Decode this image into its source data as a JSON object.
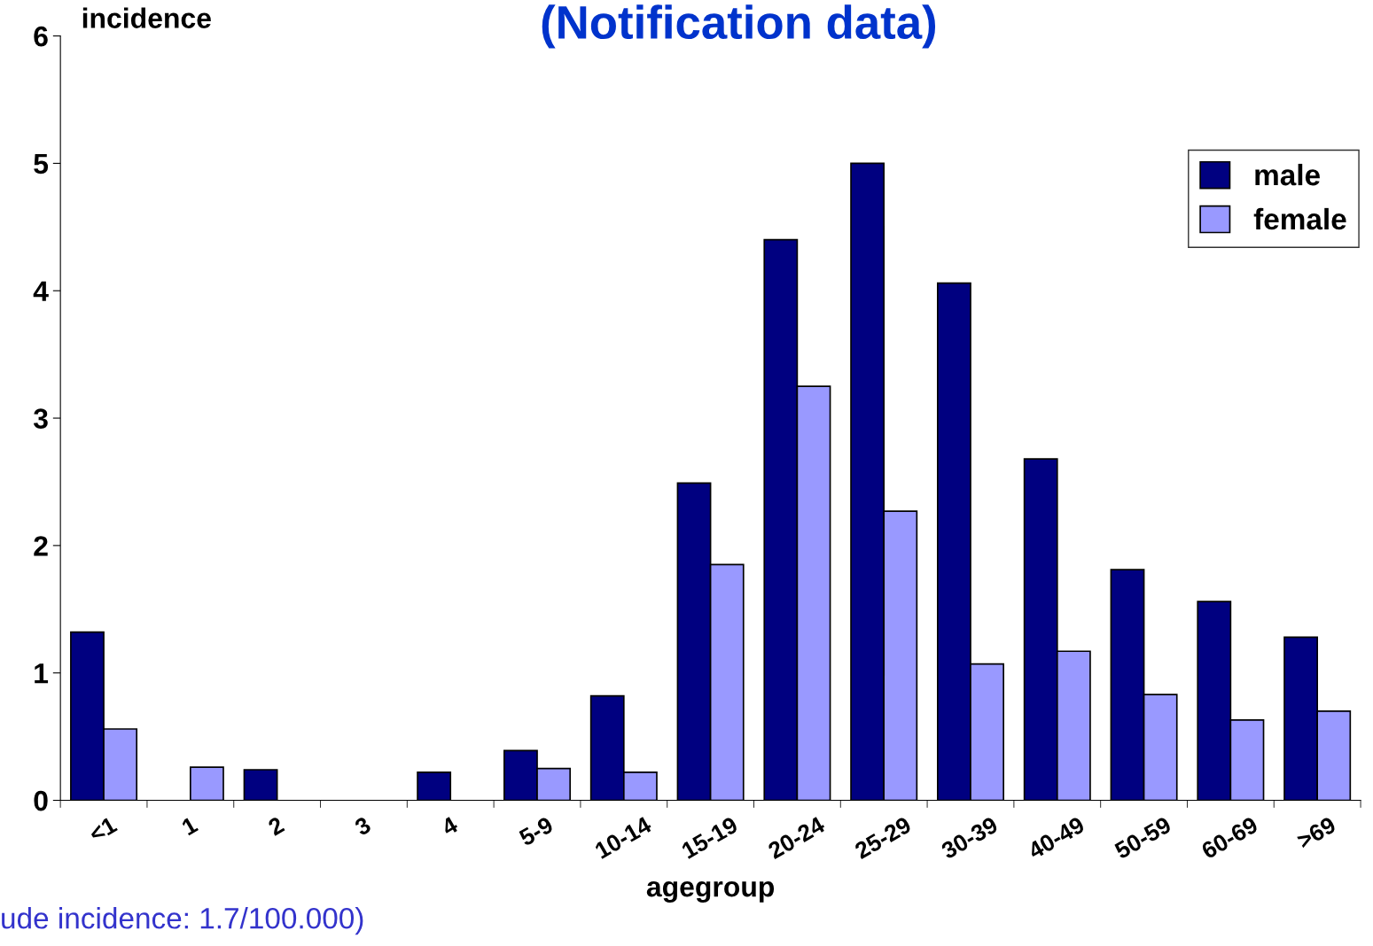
{
  "chart_data": {
    "type": "bar",
    "title": "(Notification data)",
    "xlabel": "agegroup",
    "ylabel": "incidence",
    "categories": [
      "<1",
      "1",
      "2",
      "3",
      "4",
      "5-9",
      "10-14",
      "15-19",
      "20-24",
      "25-29",
      "30-39",
      "40-49",
      "50-59",
      "60-69",
      ">69"
    ],
    "series": [
      {
        "name": "male",
        "color": "#000080",
        "values": [
          1.32,
          null,
          0.24,
          null,
          0.22,
          0.39,
          0.82,
          2.49,
          4.4,
          5.0,
          4.06,
          2.68,
          1.81,
          1.56,
          1.28
        ]
      },
      {
        "name": "female",
        "color": "#9999ff",
        "values": [
          0.56,
          0.26,
          null,
          null,
          null,
          0.25,
          0.22,
          1.85,
          3.25,
          2.27,
          1.07,
          1.17,
          0.83,
          0.63,
          0.7
        ]
      }
    ],
    "ylim": [
      0,
      6
    ],
    "yticks": [
      0,
      1,
      2,
      3,
      4,
      5,
      6
    ],
    "grid": false,
    "legend": "top right",
    "annotations": [
      "ude incidence: 1.7/100.000)"
    ]
  }
}
